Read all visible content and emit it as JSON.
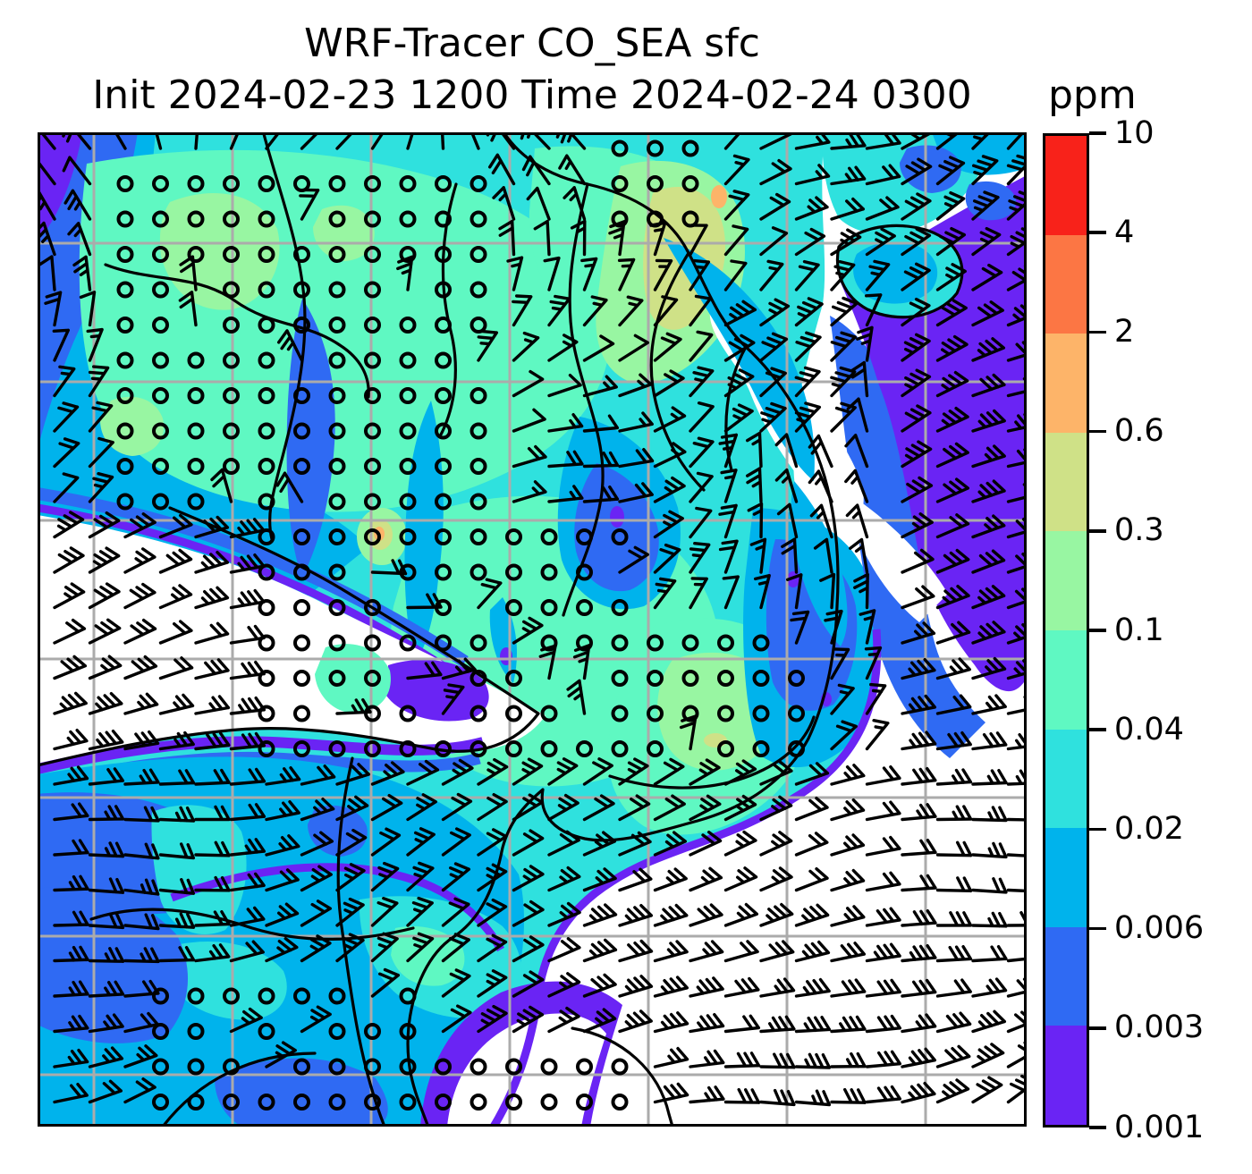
{
  "header": {
    "title": "WRF-Tracer CO_SEA sfc",
    "subtitle": "Init 2024-02-23 1200 Time 2024-02-24 0300",
    "units_label": "ppm"
  },
  "chart_data": {
    "type": "heatmap",
    "subtype": "filled-contour-map-with-wind-barbs",
    "title": "WRF-Tracer CO_SEA sfc",
    "model": "WRF-Tracer",
    "variable": "CO_SEA",
    "level": "sfc",
    "init_time": "2024-02-23 1200",
    "valid_time": "2024-02-24 0300",
    "units": "ppm",
    "colorbar": {
      "orientation": "vertical",
      "position": "right",
      "levels": [
        0.001,
        0.003,
        0.006,
        0.02,
        0.04,
        0.1,
        0.3,
        0.6,
        2,
        4,
        10
      ],
      "tick_labels": [
        "0.001",
        "0.003",
        "0.006",
        "0.02",
        "0.04",
        "0.1",
        "0.3",
        "0.6",
        "2",
        "4",
        "10"
      ],
      "band_colors_low_to_high": [
        "#6a24f4",
        "#2f6af3",
        "#00b3ec",
        "#2fe1de",
        "#5ff8c2",
        "#98f6a2",
        "#cfe187",
        "#fdb469",
        "#fc7644",
        "#f8221a"
      ],
      "below_min_color": "#ffffff"
    },
    "overlays": {
      "wind_barbs_color": "#000000",
      "calm_wind_marker": "open circle",
      "coastline_color": "#000000",
      "gridline_color": "#ababab",
      "n_vertical_gridlines": 7,
      "n_horizontal_gridlines": 7
    }
  }
}
